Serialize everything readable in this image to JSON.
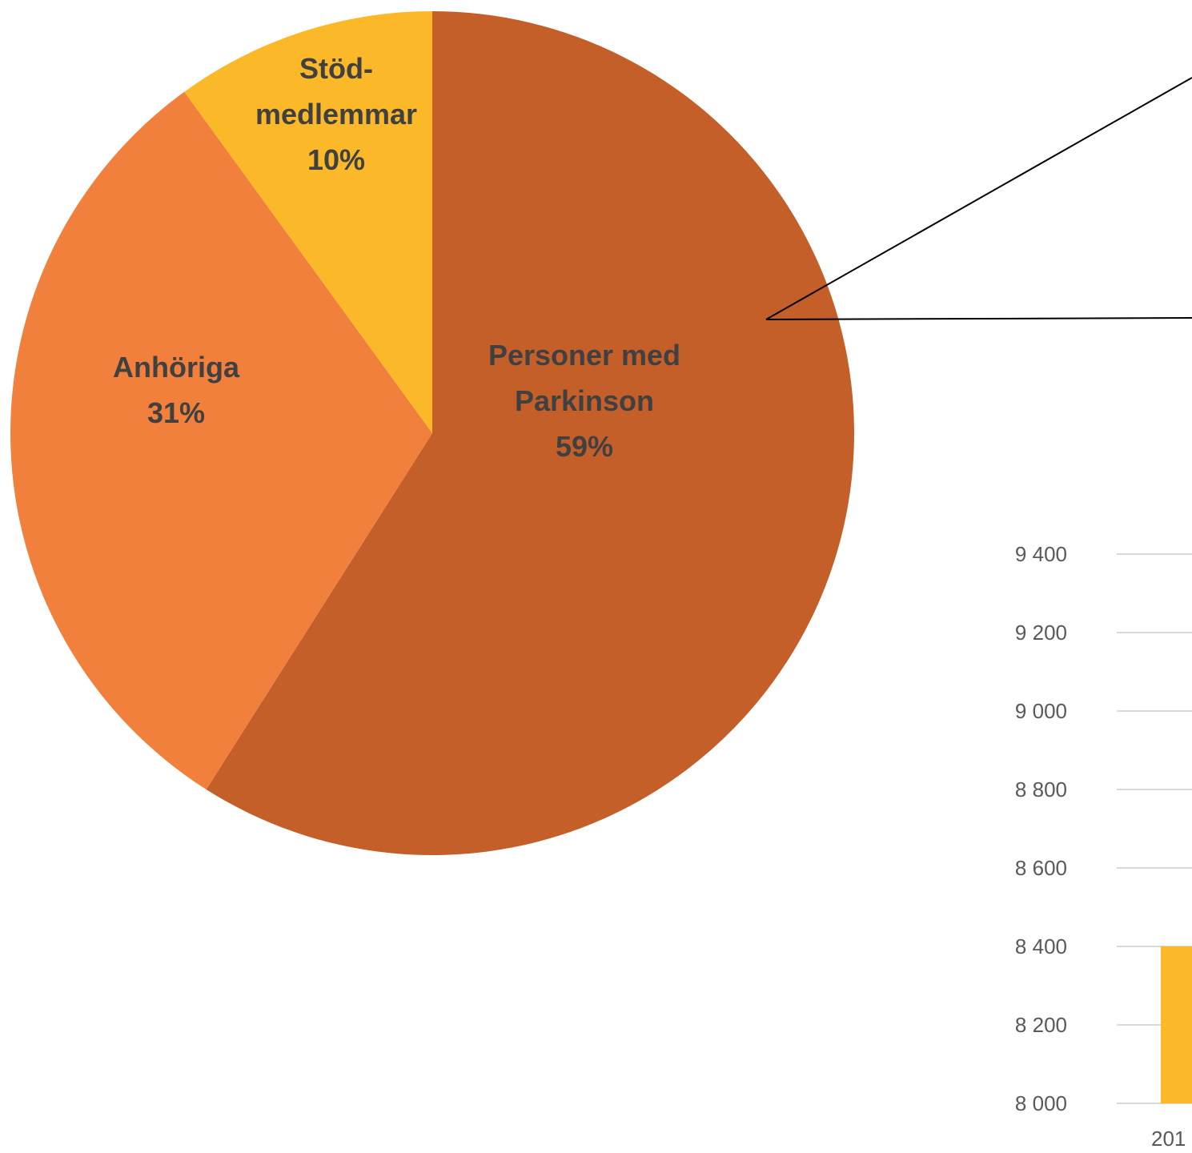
{
  "chart_data": [
    {
      "type": "pie",
      "title": "",
      "slices": [
        {
          "label_lines": [
            "Personer med",
            "Parkinson"
          ],
          "percent_label": "59%",
          "value": 59,
          "color": "#C55F2A"
        },
        {
          "label_lines": [
            "Anhöriga"
          ],
          "percent_label": "31%",
          "value": 31,
          "color": "#F2803D"
        },
        {
          "label_lines": [
            "Stöd-",
            "medlemmar"
          ],
          "percent_label": "10%",
          "value": 10,
          "color": "#FBB92A"
        }
      ],
      "callout_line_color": "#000000"
    },
    {
      "type": "bar",
      "title": "",
      "xlabel": "",
      "ylabel": "",
      "ylim": [
        8000,
        9400
      ],
      "yticks": [
        8000,
        8200,
        8400,
        8600,
        8800,
        9000,
        9200,
        9400
      ],
      "ytick_labels": [
        "8 000",
        "8 200",
        "8 400",
        "8 600",
        "8 800",
        "9 000",
        "9 200",
        "9 400"
      ],
      "categories": [
        "201"
      ],
      "values": [
        8400
      ],
      "bar_color": "#FBB92A",
      "grid": true,
      "grid_color": "#D9D9D9"
    }
  ]
}
